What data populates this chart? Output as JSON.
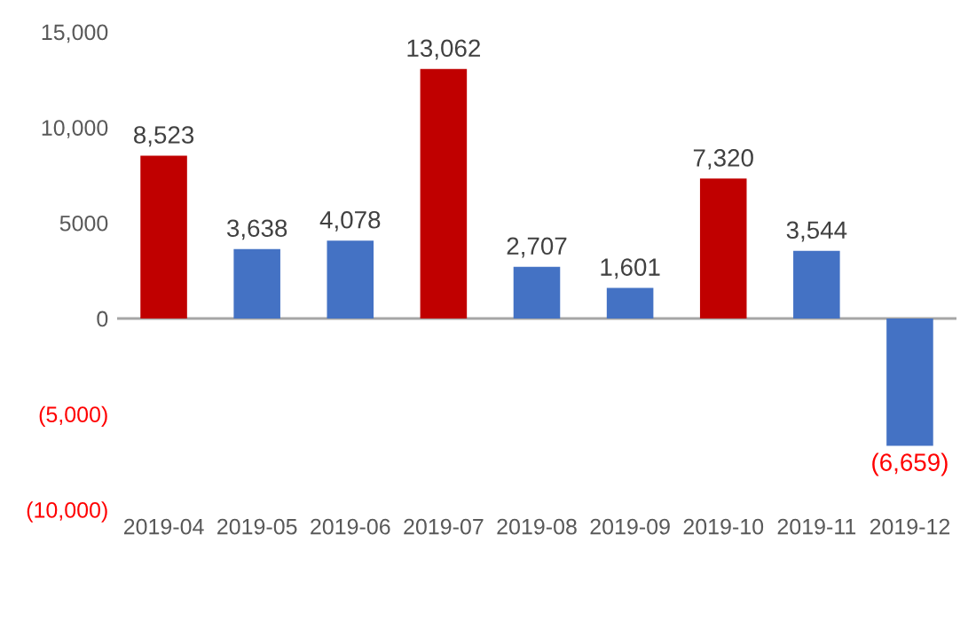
{
  "chart_data": {
    "type": "bar",
    "categories": [
      "2019-04",
      "2019-05",
      "2019-06",
      "2019-07",
      "2019-08",
      "2019-09",
      "2019-10",
      "2019-11",
      "2019-12"
    ],
    "values": [
      8523,
      3638,
      4078,
      13062,
      2707,
      1601,
      7320,
      3544,
      -6659
    ],
    "colors": [
      "#c00000",
      "#4472c4",
      "#4472c4",
      "#c00000",
      "#4472c4",
      "#4472c4",
      "#c00000",
      "#4472c4",
      "#4472c4"
    ],
    "value_labels": [
      "8,523",
      "3,638",
      "4,078",
      "13,062",
      "2,707",
      "1,601",
      "7,320",
      "3,544",
      "(6,659)"
    ],
    "ylim": [
      -10000,
      15000
    ],
    "yticks": [
      {
        "value": -10000,
        "label": "(10,000)"
      },
      {
        "value": -5000,
        "label": "(5,000)"
      },
      0,
      5000,
      {
        "value": 10000,
        "label": "10,000"
      },
      {
        "value": 15000,
        "label": "15,000"
      }
    ],
    "ref_lines": [
      {
        "axis": "y",
        "value": 0,
        "label": null,
        "color": "#a6a6a6"
      }
    ],
    "grid": false,
    "legend": false
  }
}
